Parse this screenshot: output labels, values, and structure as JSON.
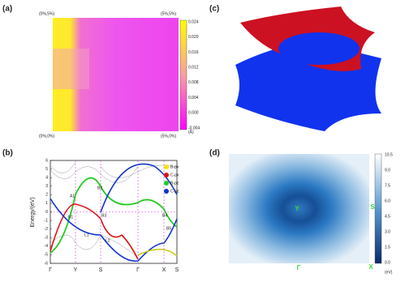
{
  "panels": {
    "a": {
      "label": "(a)",
      "corners": [
        "(0%,5%)",
        "(5%,5%)",
        "(0%,0%)",
        "(5%,0%)"
      ],
      "colorbar_ticks": [
        "0.024",
        "0.020",
        "0.016",
        "0.012",
        "0.008",
        "0.004",
        "0.000",
        "-0.004"
      ],
      "unit": "(Å)"
    },
    "b": {
      "label": "(b)",
      "y_label": "Energy/(eV)",
      "y_ticks": [
        "6",
        "5",
        "4",
        "3",
        "2",
        "1",
        "0",
        "-1",
        "-2",
        "-3",
        "-4",
        "-5",
        "-6"
      ],
      "x_ticks": [
        "Γ",
        "Y",
        "S",
        "Γ",
        "X",
        "S"
      ],
      "legend": [
        "B-px",
        "C-px",
        "B-pz",
        "C-pz"
      ],
      "annotations": [
        "A1",
        "B1",
        "B2",
        "B3",
        "L1",
        "L2",
        "B4",
        "B5"
      ]
    },
    "c": {
      "label": "(c)"
    },
    "d": {
      "label": "(d)",
      "colorbar_ticks": [
        "10.5",
        "9.0",
        "7.5",
        "6.0",
        "4.5",
        "3.0",
        "1.5",
        "0.0"
      ],
      "unit": "(eV)",
      "points": [
        "Y",
        "S",
        "Γ",
        "X"
      ]
    }
  }
}
